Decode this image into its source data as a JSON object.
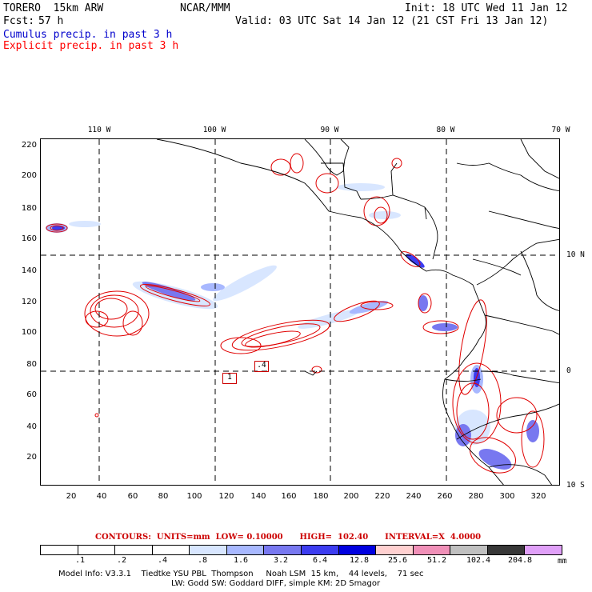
{
  "header": {
    "model": "TORERO  15km ARW",
    "org": "NCAR/MMM",
    "init": "Init: 18 UTC Wed 11 Jan 12",
    "fcst_label": "Fcst:",
    "fcst_value": "57 h",
    "valid": "Valid: 03 UTC Sat 14 Jan 12 (21 CST Fri 13 Jan 12)",
    "cumulus": "Cumulus precip. in past 3 h",
    "explicit": "Explicit precip. in past 3 h"
  },
  "colors": {
    "cumulus_text": "#0000cc",
    "explicit_text": "#ff0000",
    "contour": "#e00000",
    "gridline": "#000000"
  },
  "axes": {
    "x_ticks": [
      "20",
      "40",
      "60",
      "80",
      "100",
      "120",
      "140",
      "160",
      "180",
      "200",
      "220",
      "240",
      "260",
      "280",
      "300",
      "320"
    ],
    "y_ticks": [
      "220",
      "200",
      "180",
      "160",
      "140",
      "120",
      "100",
      "80",
      "60",
      "40",
      "20"
    ],
    "lon_labels": [
      "110 W",
      "100 W",
      "90 W",
      "80 W",
      "70 W"
    ],
    "lat_labels": [
      "10 N",
      "0",
      "10 S"
    ]
  },
  "map_labels": {
    "box1": "1",
    "box2": ".4"
  },
  "legend": {
    "contours_line": "CONTOURS:  UNITS=mm  LOW= 0.10000      HIGH=  102.40      INTERVAL=X  4.0000",
    "colorbar_labels": [
      ".1",
      ".2",
      ".4",
      ".8",
      "1.6",
      "3.2",
      "6.4",
      "12.8",
      "25.6",
      "51.2",
      "102.4",
      "204.8"
    ],
    "colorbar_colors": [
      "#ffffff",
      "#ffffff",
      "#ffffff",
      "#ffffff",
      "#d8e6ff",
      "#a8b8ff",
      "#7878f0",
      "#3c3cf0",
      "#0000e0",
      "#ffd0d0",
      "#f090b8",
      "#c0c0c0",
      "#383838",
      "#e0a0f8"
    ],
    "unit": "mm"
  },
  "footer": {
    "line1": "Model Info: V3.3.1    Tiedtke YSU PBL  Thompson     Noah LSM  15 km,    44 levels,    71 sec",
    "line2": "LW: Godd SW: Goddard DIFF, simple KM: 2D Smagor"
  }
}
